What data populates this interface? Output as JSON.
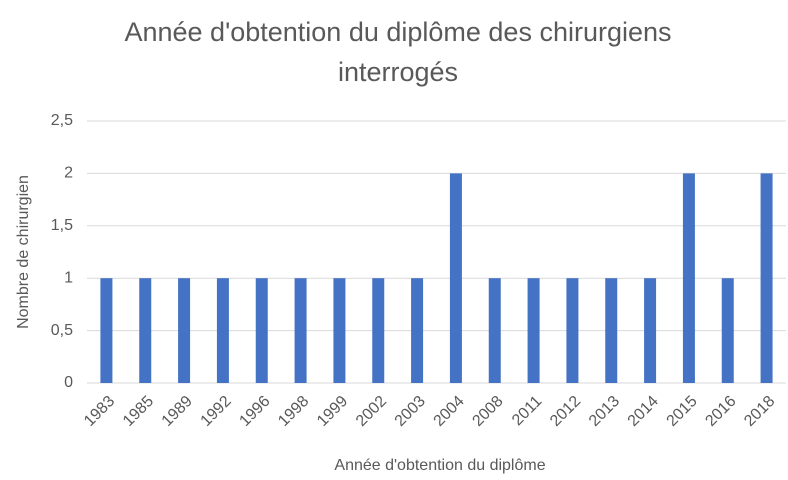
{
  "chart_data": {
    "type": "bar",
    "title": "Année d'obtention du diplôme des chirurgiens interrogés",
    "x_label": "Année d'obtention du diplôme",
    "y_label": "Nombre de chirurgien",
    "categories": [
      "1983",
      "1985",
      "1989",
      "1992",
      "1996",
      "1998",
      "1999",
      "2002",
      "2003",
      "2004",
      "2008",
      "2011",
      "2012",
      "2013",
      "2014",
      "2015",
      "2016",
      "2018"
    ],
    "values": [
      1,
      1,
      1,
      1,
      1,
      1,
      1,
      1,
      1,
      2,
      1,
      1,
      1,
      1,
      1,
      2,
      1,
      2
    ],
    "color": "#4472c4",
    "ylim": [
      0,
      2.5
    ],
    "yticks": [
      0,
      {
        "value": 0.5,
        "label": "0,5"
      },
      1,
      {
        "value": 1.5,
        "label": "1,5"
      },
      2,
      {
        "value": 2.5,
        "label": "2,5"
      }
    ],
    "grid": true
  }
}
